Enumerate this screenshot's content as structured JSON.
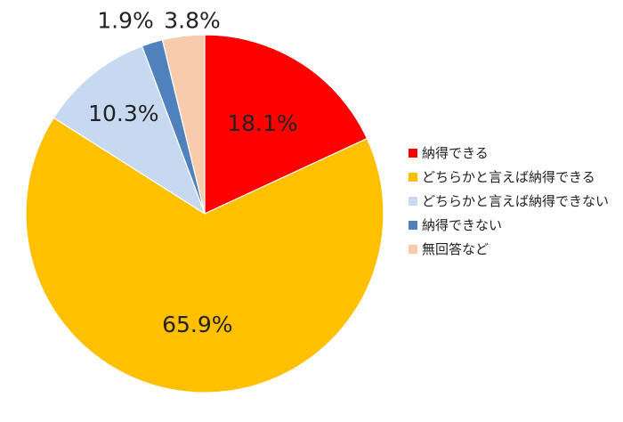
{
  "chart_data": {
    "type": "pie",
    "title": "",
    "categories": [
      "納得できる",
      "どちらかと言えば納得できる",
      "どちらかと言えば納得できない",
      "納得できない",
      "無回答など"
    ],
    "values": [
      18.1,
      65.9,
      10.3,
      1.9,
      3.8
    ],
    "value_labels": [
      "18.1%",
      "65.9%",
      "10.3%",
      "1.9%",
      "3.8%"
    ],
    "colors": [
      "#ff0000",
      "#ffc000",
      "#c6d9f1",
      "#4f81bd",
      "#f8cbad"
    ],
    "start_angle": "12 o'clock",
    "direction": "clockwise",
    "legend_position": "right"
  }
}
